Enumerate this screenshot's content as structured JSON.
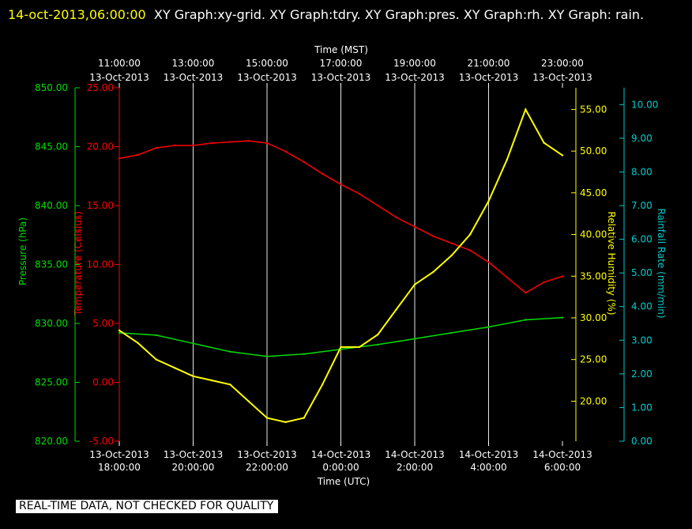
{
  "header": {
    "timestamp": "14-oct-2013,06:00:00",
    "title": "XY Graph:xy-grid.  XY Graph:tdry.  XY Graph:pres.  XY Graph:rh.  XY Graph: rain."
  },
  "notice": "REAL-TIME DATA, NOT CHECKED FOR QUALITY",
  "chart_data": {
    "type": "line",
    "top_axis": {
      "label": "Time (MST)",
      "ticks": [
        {
          "time": "11:00:00",
          "date": "13-Oct-2013"
        },
        {
          "time": "13:00:00",
          "date": "13-Oct-2013"
        },
        {
          "time": "15:00:00",
          "date": "13-Oct-2013"
        },
        {
          "time": "17:00:00",
          "date": "13-Oct-2013"
        },
        {
          "time": "19:00:00",
          "date": "13-Oct-2013"
        },
        {
          "time": "21:00:00",
          "date": "13-Oct-2013"
        },
        {
          "time": "23:00:00",
          "date": "13-Oct-2013"
        }
      ]
    },
    "bottom_axis": {
      "label": "Time (UTC)",
      "ticks": [
        {
          "date": "13-Oct-2013",
          "time": "18:00:00"
        },
        {
          "date": "13-Oct-2013",
          "time": "20:00:00"
        },
        {
          "date": "13-Oct-2013",
          "time": "22:00:00"
        },
        {
          "date": "14-Oct-2013",
          "time": "0:00:00"
        },
        {
          "date": "14-Oct-2013",
          "time": "2:00:00"
        },
        {
          "date": "14-Oct-2013",
          "time": "4:00:00"
        },
        {
          "date": "14-Oct-2013",
          "time": "6:00:00"
        }
      ],
      "xlim": [
        "2013-10-13T18:00Z",
        "2013-10-14T06:00Z"
      ]
    },
    "axes": {
      "pressure": {
        "label": "Pressure (hPa)",
        "color": "#00dd00",
        "ylim": [
          820,
          850
        ],
        "ticks": [
          "850.00",
          "845.00",
          "840.00",
          "835.00",
          "830.00",
          "825.00",
          "820.00"
        ]
      },
      "temperature": {
        "label": "Temperature (Celsius)",
        "color": "#ff0000",
        "ylim": [
          -5,
          25
        ],
        "ticks": [
          "25.00",
          "20.00",
          "15.00",
          "10.00",
          "5.00",
          "0.00",
          "-5.00"
        ]
      },
      "humidity": {
        "label": "Relative Humidity (%)",
        "color": "#ffff00",
        "ylim": [
          15.2,
          57.6
        ],
        "ticks": [
          "55.00",
          "50.00",
          "45.00",
          "40.00",
          "35.00",
          "30.00",
          "25.00",
          "20.00"
        ]
      },
      "rain": {
        "label": "Rainfall Rate (mm/min)",
        "color": "#00cccc",
        "ylim": [
          0,
          10.5
        ],
        "ticks": [
          "10.00",
          "9.00",
          "8.00",
          "7.00",
          "6.00",
          "5.00",
          "4.00",
          "3.00",
          "2.00",
          "1.00",
          "0.00"
        ]
      }
    },
    "series": [
      {
        "axis": "temperature",
        "x": [
          "2013-10-13T18:00Z",
          "2013-10-13T18:30Z",
          "2013-10-13T19:00Z",
          "2013-10-13T19:30Z",
          "2013-10-13T20:00Z",
          "2013-10-13T20:30Z",
          "2013-10-13T21:00Z",
          "2013-10-13T21:30Z",
          "2013-10-13T22:00Z",
          "2013-10-13T22:30Z",
          "2013-10-13T23:00Z",
          "2013-10-13T23:30Z",
          "2013-10-14T00:00Z",
          "2013-10-14T00:30Z",
          "2013-10-14T01:00Z",
          "2013-10-14T01:30Z",
          "2013-10-14T02:00Z",
          "2013-10-14T02:30Z",
          "2013-10-14T03:00Z",
          "2013-10-14T03:30Z",
          "2013-10-14T04:00Z",
          "2013-10-14T04:30Z",
          "2013-10-14T05:00Z",
          "2013-10-14T05:30Z",
          "2013-10-14T06:00Z"
        ],
        "values": [
          19.0,
          19.3,
          19.9,
          20.1,
          20.1,
          20.3,
          20.4,
          20.5,
          20.3,
          19.6,
          18.7,
          17.7,
          16.8,
          16.0,
          15.0,
          14.0,
          13.2,
          12.4,
          11.8,
          11.2,
          10.2,
          8.9,
          7.6,
          8.5,
          9.0
        ]
      },
      {
        "axis": "pressure",
        "x": [
          "2013-10-13T18:00Z",
          "2013-10-13T19:00Z",
          "2013-10-13T20:00Z",
          "2013-10-13T21:00Z",
          "2013-10-13T22:00Z",
          "2013-10-13T23:00Z",
          "2013-10-14T00:00Z",
          "2013-10-14T01:00Z",
          "2013-10-14T02:00Z",
          "2013-10-14T03:00Z",
          "2013-10-14T04:00Z",
          "2013-10-14T05:00Z",
          "2013-10-14T06:00Z"
        ],
        "values": [
          829.2,
          829.0,
          828.3,
          827.6,
          827.2,
          827.4,
          827.8,
          828.2,
          828.7,
          829.2,
          829.7,
          830.3,
          830.5
        ]
      },
      {
        "axis": "humidity",
        "x": [
          "2013-10-13T18:00Z",
          "2013-10-13T18:30Z",
          "2013-10-13T19:00Z",
          "2013-10-13T19:30Z",
          "2013-10-13T20:00Z",
          "2013-10-13T20:30Z",
          "2013-10-13T21:00Z",
          "2013-10-13T21:30Z",
          "2013-10-13T22:00Z",
          "2013-10-13T22:30Z",
          "2013-10-13T23:00Z",
          "2013-10-13T23:30Z",
          "2013-10-14T00:00Z",
          "2013-10-14T00:30Z",
          "2013-10-14T01:00Z",
          "2013-10-14T01:30Z",
          "2013-10-14T02:00Z",
          "2013-10-14T02:30Z",
          "2013-10-14T03:00Z",
          "2013-10-14T03:30Z",
          "2013-10-14T04:00Z",
          "2013-10-14T04:30Z",
          "2013-10-14T05:00Z",
          "2013-10-14T05:30Z",
          "2013-10-14T06:00Z"
        ],
        "values": [
          28.5,
          27.0,
          25.0,
          24.0,
          23.0,
          22.5,
          22.0,
          20.0,
          18.0,
          17.5,
          18.0,
          22.0,
          26.5,
          26.5,
          28.0,
          31.0,
          34.0,
          35.5,
          37.5,
          40.0,
          44.0,
          49.0,
          55.0,
          51.0,
          49.5
        ]
      }
    ]
  }
}
